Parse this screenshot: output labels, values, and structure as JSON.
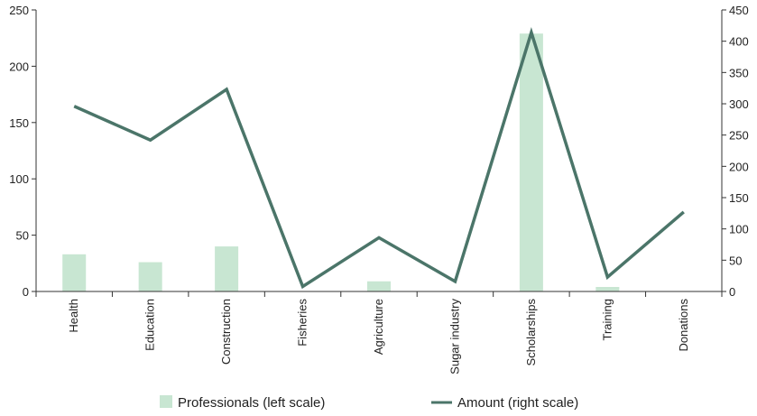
{
  "chart_data": {
    "type": "bar+line",
    "categories": [
      "Health",
      "Education",
      "Construction",
      "Fisheries",
      "Agriculture",
      "Sugar industry",
      "Scholarships",
      "Training",
      "Donations"
    ],
    "series": [
      {
        "name": "Professionals (left scale)",
        "type": "bar",
        "axis": "left",
        "color": "#c8e6d2",
        "values": [
          33,
          26,
          40,
          0,
          9,
          0,
          229,
          4,
          0
        ]
      },
      {
        "name": "Amount (right scale)",
        "type": "line",
        "axis": "right",
        "color": "#4b7569",
        "values": [
          296,
          242,
          323,
          8,
          86,
          16,
          414,
          23,
          127
        ]
      }
    ],
    "left_axis": {
      "min": 0,
      "max": 250,
      "ticks": [
        "0",
        "50",
        "100",
        "150",
        "200",
        "250"
      ]
    },
    "right_axis": {
      "min": 0,
      "max": 450,
      "ticks": [
        "0",
        "50",
        "100",
        "150",
        "200",
        "250",
        "300",
        "350",
        "400",
        "450"
      ]
    },
    "legend_placement": "bottom",
    "grid": false
  }
}
